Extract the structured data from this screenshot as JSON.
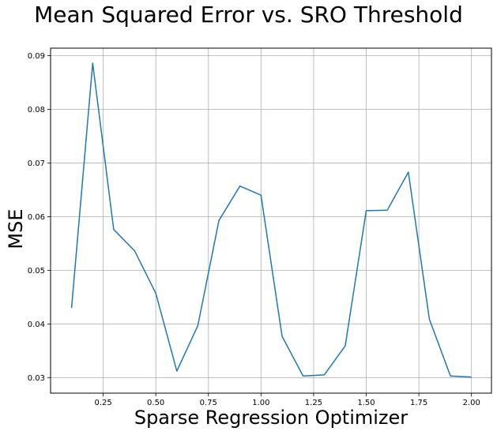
{
  "chart_data": {
    "type": "line",
    "title": "Mean Squared Error vs. SRO Threshold",
    "xlabel": "Sparse Regression Optimizer",
    "ylabel": "MSE",
    "xlim": [
      0.0,
      2.095
    ],
    "ylim": [
      0.0271,
      0.0914
    ],
    "xticks": [
      0.25,
      0.5,
      0.75,
      1.0,
      1.25,
      1.5,
      1.75,
      2.0
    ],
    "xtick_labels": [
      "0.25",
      "0.50",
      "0.75",
      "1.00",
      "1.25",
      "1.50",
      "1.75",
      "2.00"
    ],
    "yticks": [
      0.03,
      0.04,
      0.05,
      0.06,
      0.07,
      0.08,
      0.09
    ],
    "ytick_labels": [
      "0.03",
      "0.04",
      "0.05",
      "0.06",
      "0.07",
      "0.08",
      "0.09"
    ],
    "grid": true,
    "series": [
      {
        "color": "#1f77b4",
        "x": [
          0.1,
          0.2,
          0.3,
          0.4,
          0.5,
          0.6,
          0.7,
          0.8,
          0.9,
          1.0,
          1.1,
          1.2,
          1.3,
          1.4,
          1.5,
          1.6,
          1.7,
          1.8,
          1.9,
          2.0
        ],
        "y": [
          0.043,
          0.0886,
          0.0576,
          0.0536,
          0.0457,
          0.0312,
          0.0397,
          0.0593,
          0.0657,
          0.064,
          0.0377,
          0.0303,
          0.0305,
          0.0359,
          0.0611,
          0.0612,
          0.0683,
          0.0409,
          0.0303,
          0.0301
        ]
      }
    ]
  }
}
